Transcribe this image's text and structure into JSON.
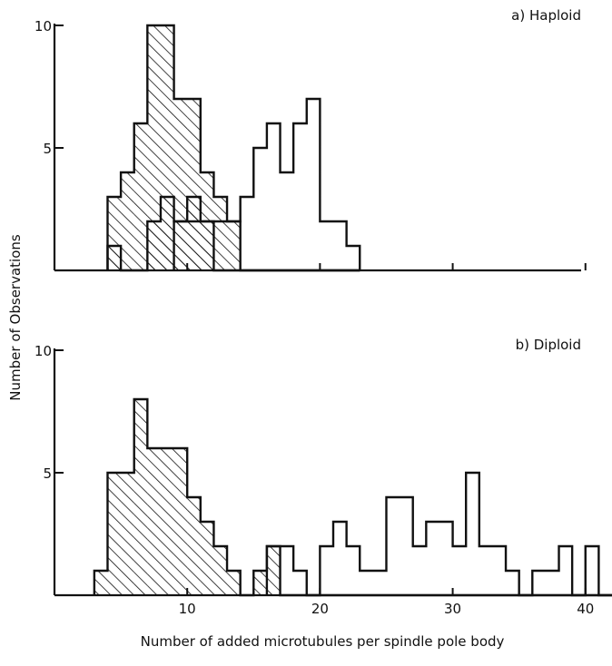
{
  "chart_data": [
    {
      "type": "bar",
      "title": "a) Haploid",
      "xlabel": "",
      "ylabel": "Number of Observations",
      "xlim": [
        0,
        42
      ],
      "ylim": [
        0,
        10
      ],
      "yticks": [
        "5",
        "10"
      ],
      "xticks": [],
      "bin_edges": [
        4,
        5,
        6,
        7,
        8,
        9,
        10,
        11,
        12,
        13,
        14,
        15,
        16,
        17,
        18,
        19,
        20,
        21,
        22,
        23
      ],
      "series": [
        {
          "style": "hatched",
          "values": [
            3,
            4,
            6,
            10,
            10,
            7,
            7,
            4,
            3,
            2,
            0,
            0,
            0,
            0,
            0,
            0,
            0,
            0,
            0
          ]
        },
        {
          "style": "hatched",
          "values": [
            1,
            0,
            0,
            2,
            3,
            2,
            3,
            2,
            0,
            0,
            0,
            0,
            0,
            0,
            0,
            0,
            0,
            0,
            0
          ]
        },
        {
          "style": "open",
          "values": [
            0,
            0,
            0,
            0,
            0,
            2,
            2,
            2,
            2,
            2,
            3,
            5,
            6,
            4,
            6,
            7,
            2,
            2,
            1
          ]
        }
      ]
    },
    {
      "type": "bar",
      "title": "b) Diploid",
      "xlabel": "Number of added microtubules per spindle pole body",
      "ylabel": "Number of Observations",
      "xlim": [
        0,
        42
      ],
      "ylim": [
        0,
        10
      ],
      "yticks": [
        "5",
        "10"
      ],
      "xticks": [
        "10",
        "20",
        "30",
        "40"
      ],
      "bin_edges": [
        3,
        4,
        5,
        6,
        7,
        8,
        9,
        10,
        11,
        12,
        13,
        14,
        15,
        16,
        17,
        18,
        19,
        20,
        21,
        22,
        23,
        24,
        25,
        26,
        27,
        28,
        29,
        30,
        31,
        32,
        33,
        34,
        35,
        36,
        37,
        38,
        39,
        40,
        41,
        42
      ],
      "series": [
        {
          "style": "hatched",
          "values": [
            1,
            5,
            5,
            8,
            6,
            6,
            6,
            4,
            3,
            2,
            1,
            0,
            1,
            2,
            0,
            0,
            0,
            0,
            0,
            0,
            0,
            0,
            0,
            0,
            0,
            0,
            0,
            0,
            0,
            0,
            0,
            0,
            0,
            0,
            0,
            0,
            0,
            0,
            0
          ]
        },
        {
          "style": "open",
          "values": [
            0,
            0,
            0,
            0,
            0,
            0,
            0,
            0,
            0,
            0,
            0,
            0,
            0,
            2,
            2,
            1,
            0,
            2,
            3,
            2,
            1,
            1,
            4,
            4,
            2,
            3,
            3,
            2,
            5,
            2,
            2,
            1,
            0,
            1,
            1,
            2,
            0,
            2,
            0
          ]
        }
      ]
    }
  ]
}
